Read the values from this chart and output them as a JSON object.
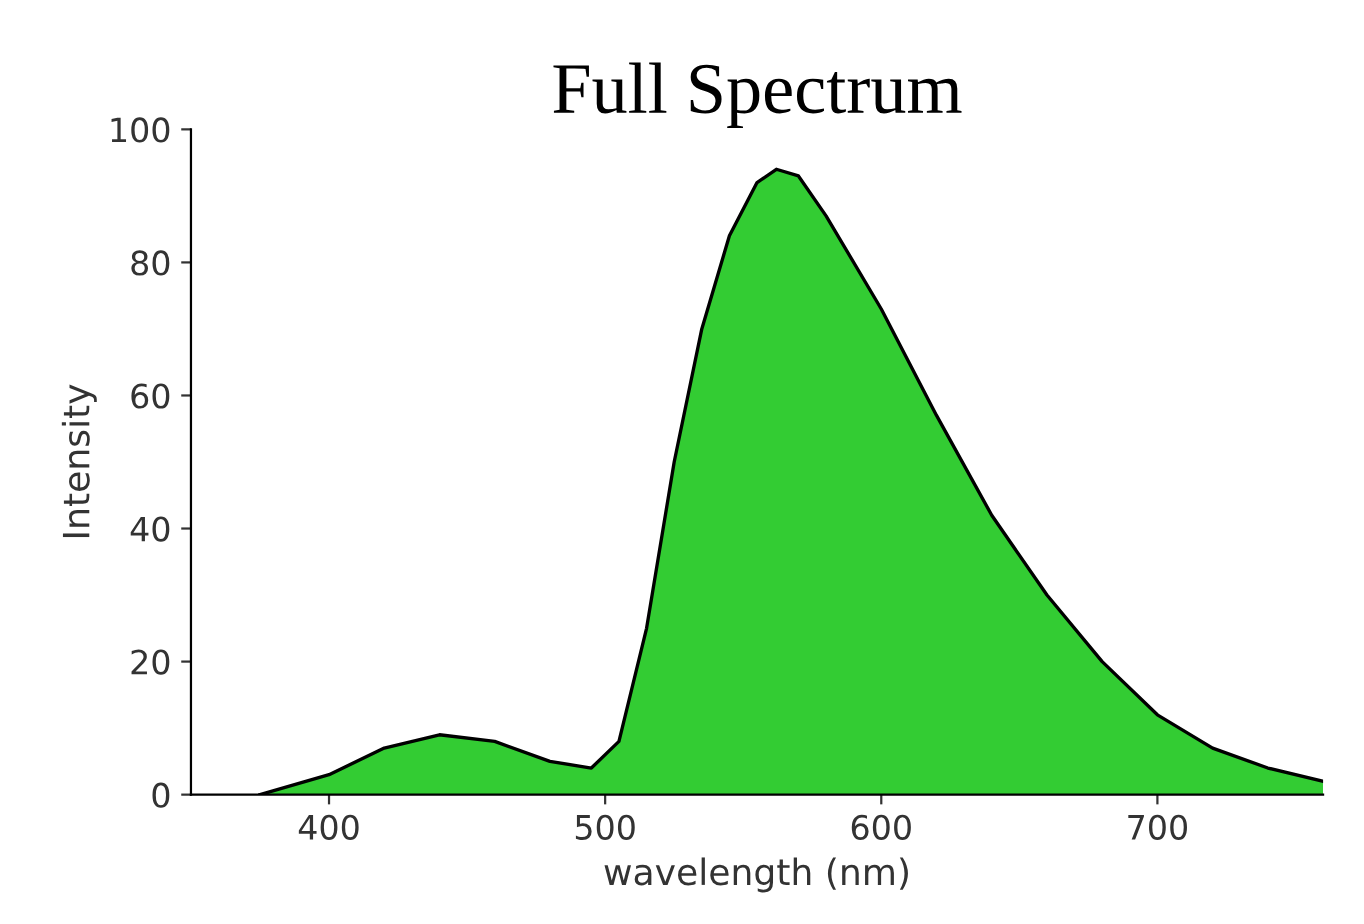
{
  "chart_data": {
    "type": "area",
    "title": "Full Spectrum",
    "xlabel": "wavelength (nm)",
    "ylabel": "Intensity",
    "xlim": [
      350,
      760
    ],
    "xticks": [
      400,
      500,
      600,
      700
    ],
    "ylim": [
      0,
      100
    ],
    "yticks": [
      0,
      20,
      40,
      60,
      80,
      100
    ],
    "grid": false,
    "legend": false,
    "series": [
      {
        "color": "#33cc33",
        "x": [
          375,
          400,
          420,
          440,
          460,
          480,
          495,
          505,
          515,
          525,
          535,
          545,
          555,
          562,
          570,
          580,
          600,
          620,
          640,
          660,
          680,
          700,
          720,
          740,
          760
        ],
        "values": [
          0,
          3,
          7,
          9,
          8,
          5,
          4,
          8,
          25,
          50,
          70,
          84,
          92,
          94,
          93,
          87,
          73,
          57,
          42,
          30,
          20,
          12,
          7,
          4,
          2
        ]
      }
    ]
  }
}
